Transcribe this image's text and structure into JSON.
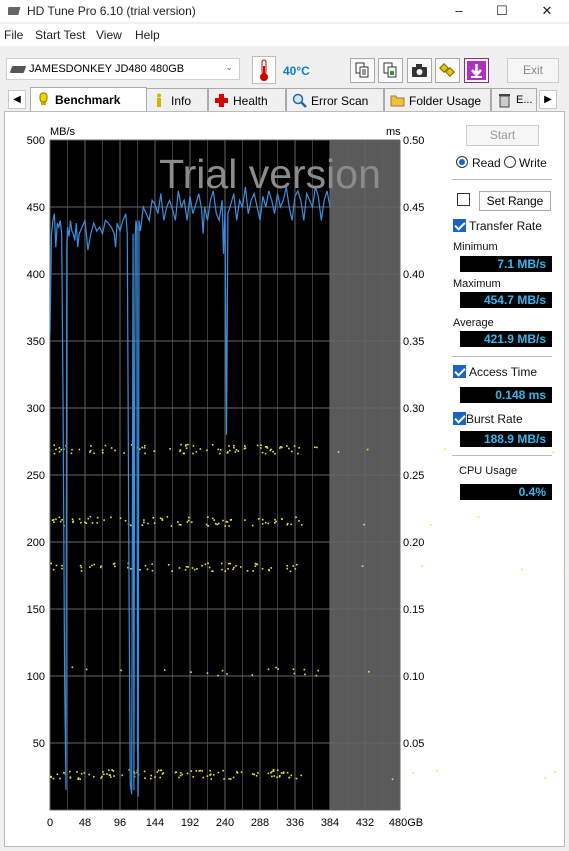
{
  "window": {
    "title": "HD Tune Pro 6.10 (trial version)"
  },
  "menu": [
    "File",
    "Start Test",
    "View",
    "Help"
  ],
  "toolbar": {
    "drive": "JAMESDONKEY JD480 480GB",
    "temperature": "40°C",
    "exit_label": "Exit",
    "icons": [
      "copy-text-icon",
      "copy-image-icon",
      "camera-icon",
      "options-icon",
      "download-icon"
    ]
  },
  "tabs": [
    {
      "label": "Benchmark",
      "icon": "benchmark-icon",
      "active": true
    },
    {
      "label": "Info",
      "icon": "info-icon"
    },
    {
      "label": "Health",
      "icon": "health-icon"
    },
    {
      "label": "Error Scan",
      "icon": "error-scan-icon"
    },
    {
      "label": "Folder Usage",
      "icon": "folder-icon"
    },
    {
      "label": "E...",
      "icon": "erase-icon"
    }
  ],
  "controls": {
    "start_label": "Start",
    "read_label": "Read",
    "write_label": "Write",
    "mode": "read",
    "set_range_label": "Set Range",
    "transfer_rate_label": "Transfer Rate",
    "minimum_label": "Minimum",
    "minimum": "7.1 MB/s",
    "maximum_label": "Maximum",
    "maximum": "454.7 MB/s",
    "average_label": "Average",
    "average": "421.9 MB/s",
    "access_time_label": "Access Time",
    "access_time": "0.148 ms",
    "burst_rate_label": "Burst Rate",
    "burst_rate": "188.9 MB/s",
    "cpu_usage_label": "CPU Usage",
    "cpu_usage": "0.4%",
    "set_range_checked": false,
    "transfer_rate_checked": true,
    "access_time_checked": true,
    "burst_rate_checked": true
  },
  "chart_data": {
    "type": "line",
    "watermark": "Trial version",
    "y_unit_left": "MB/s",
    "y_unit_right": "ms",
    "ylim": [
      0,
      500
    ],
    "y2lim": [
      0,
      0.5
    ],
    "xlim": [
      0,
      480
    ],
    "xticks": [
      "0",
      "48",
      "96",
      "144",
      "192",
      "240",
      "288",
      "336",
      "384",
      "432",
      "480GB"
    ],
    "yticks_left": [
      "500",
      "450",
      "400",
      "350",
      "300",
      "250",
      "200",
      "150",
      "100",
      "50"
    ],
    "yticks_right": [
      "0.50",
      "0.45",
      "0.40",
      "0.35",
      "0.30",
      "0.25",
      "0.20",
      "0.15",
      "0.10",
      "0.05"
    ],
    "tested_until": 384,
    "colors": {
      "transfer": "#3a8fe0",
      "access": "#e8e832",
      "plot_bg": "#000000",
      "untested_bg": "#5a5a5a",
      "grid": "#666666"
    },
    "series": [
      {
        "name": "Transfer Rate",
        "x": [
          0,
          2,
          4,
          6,
          8,
          10,
          12,
          14,
          16,
          18,
          20,
          22,
          23,
          24,
          26,
          28,
          30,
          32,
          34,
          36,
          38,
          40,
          44,
          48,
          52,
          56,
          60,
          64,
          68,
          72,
          76,
          80,
          84,
          88,
          90,
          92,
          96,
          100,
          104,
          106,
          108,
          110,
          112,
          114,
          115,
          116,
          117,
          118,
          119,
          120,
          121,
          122,
          124,
          128,
          132,
          136,
          140,
          144,
          148,
          152,
          156,
          160,
          164,
          168,
          172,
          176,
          180,
          184,
          188,
          192,
          196,
          200,
          204,
          208,
          210,
          212,
          216,
          220,
          224,
          228,
          232,
          236,
          238,
          240,
          242,
          244,
          248,
          252,
          256,
          260,
          264,
          268,
          272,
          276,
          280,
          284,
          288,
          292,
          296,
          300,
          304,
          308,
          312,
          316,
          320,
          324,
          328,
          332,
          336,
          340,
          344,
          348,
          352,
          356,
          360,
          364,
          368,
          372,
          376,
          380,
          384
        ],
        "y": [
          355,
          430,
          440,
          445,
          420,
          438,
          435,
          440,
          430,
          300,
          100,
          15,
          420,
          435,
          428,
          440,
          432,
          430,
          425,
          438,
          420,
          430,
          435,
          440,
          418,
          430,
          438,
          432,
          435,
          430,
          440,
          438,
          435,
          430,
          420,
          438,
          432,
          440,
          445,
          430,
          200,
          20,
          12,
          430,
          15,
          310,
          430,
          440,
          435,
          50,
          10,
          440,
          432,
          450,
          445,
          440,
          455,
          452,
          445,
          460,
          440,
          450,
          455,
          448,
          440,
          462,
          450,
          455,
          440,
          458,
          445,
          452,
          460,
          448,
          430,
          450,
          440,
          455,
          462,
          445,
          440,
          455,
          415,
          450,
          280,
          445,
          452,
          460,
          440,
          455,
          450,
          465,
          445,
          455,
          460,
          450,
          440,
          458,
          450,
          462,
          455,
          445,
          460,
          450,
          455,
          465,
          450,
          440,
          458,
          462,
          455,
          440,
          460,
          455,
          450,
          465,
          458,
          440,
          455,
          462,
          450
        ]
      },
      {
        "name": "Access Time",
        "type": "scatter",
        "bands_ms": [
          0.027,
          0.104,
          0.182,
          0.216,
          0.27
        ]
      }
    ]
  }
}
